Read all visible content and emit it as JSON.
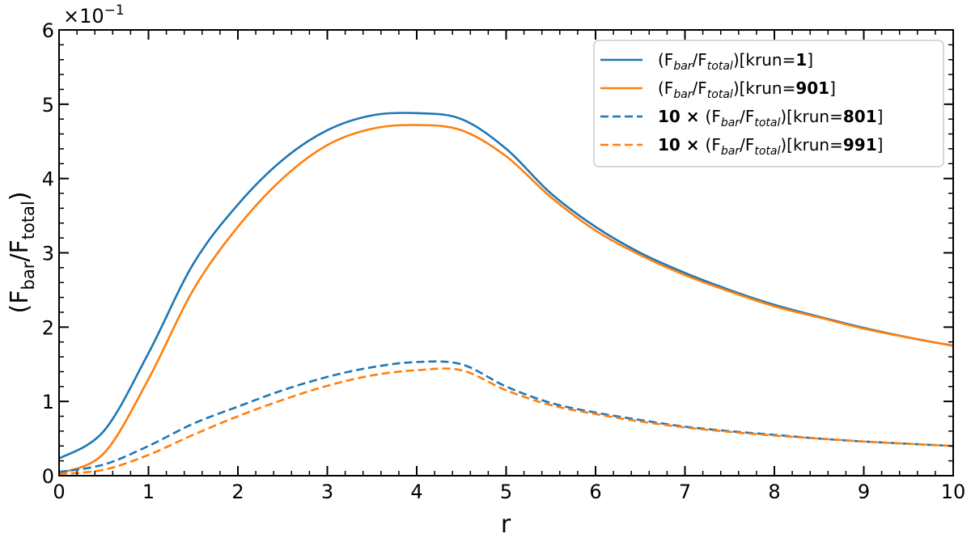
{
  "chart_data": {
    "type": "line",
    "title": "",
    "xlabel": "r",
    "ylabel": "(F_bar/F_total)",
    "ylabel_parts": {
      "open": "(F",
      "sub1": "bar",
      "mid": "/F",
      "sub2": "total",
      "close": ")"
    },
    "y_multiplier": "×10",
    "y_multiplier_exp": "−1",
    "xlim": [
      0,
      10
    ],
    "ylim": [
      0,
      6
    ],
    "xticks": [
      0,
      1,
      2,
      3,
      4,
      5,
      6,
      7,
      8,
      9,
      10
    ],
    "yticks": [
      0,
      1,
      2,
      3,
      4,
      5,
      6
    ],
    "grid": false,
    "legend_position": "upper right",
    "x": [
      0,
      0.5,
      1,
      1.5,
      2,
      2.5,
      3,
      3.5,
      4,
      4.5,
      5,
      5.5,
      6,
      6.5,
      7,
      7.5,
      8,
      8.5,
      9,
      9.5,
      10
    ],
    "series": [
      {
        "name": "(F_bar/F_total)[krun=1]",
        "prefix": "",
        "krun": "1",
        "color": "#1f77b4",
        "style": "solid",
        "values": [
          0.23,
          0.6,
          1.65,
          2.85,
          3.65,
          4.25,
          4.65,
          4.85,
          4.88,
          4.8,
          4.4,
          3.8,
          3.35,
          3.0,
          2.73,
          2.5,
          2.3,
          2.14,
          1.99,
          1.86,
          1.75
        ]
      },
      {
        "name": "(F_bar/F_total)[krun=901]",
        "prefix": "",
        "krun": "901",
        "color": "#ff7f0e",
        "style": "solid",
        "values": [
          0.03,
          0.3,
          1.3,
          2.5,
          3.35,
          4.0,
          4.45,
          4.67,
          4.72,
          4.65,
          4.3,
          3.75,
          3.3,
          2.97,
          2.7,
          2.48,
          2.28,
          2.13,
          1.98,
          1.86,
          1.75
        ]
      },
      {
        "name": "10 × (F_bar/F_total)[krun=801]",
        "prefix": "10 ×",
        "krun": "801",
        "color": "#1f77b4",
        "style": "dashed",
        "values": [
          0.05,
          0.15,
          0.4,
          0.7,
          0.93,
          1.15,
          1.33,
          1.46,
          1.53,
          1.5,
          1.2,
          0.98,
          0.85,
          0.75,
          0.66,
          0.6,
          0.55,
          0.5,
          0.46,
          0.43,
          0.4
        ]
      },
      {
        "name": "10 × (F_bar/F_total)[krun=991]",
        "prefix": "10 ×",
        "krun": "991",
        "color": "#ff7f0e",
        "style": "dashed",
        "values": [
          0.02,
          0.08,
          0.28,
          0.55,
          0.8,
          1.02,
          1.21,
          1.35,
          1.42,
          1.42,
          1.15,
          0.95,
          0.83,
          0.73,
          0.65,
          0.59,
          0.54,
          0.5,
          0.46,
          0.43,
          0.4
        ]
      }
    ]
  }
}
